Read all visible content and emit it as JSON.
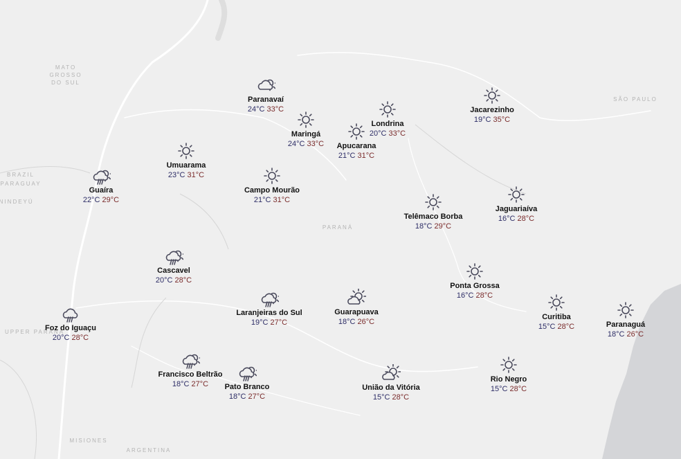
{
  "map": {
    "region_labels": [
      {
        "id": "mato-grosso-do-sul",
        "text": "MATO\nGROSSO\nDO SUL"
      },
      {
        "id": "sao-paulo",
        "text": "SÃO PAULO"
      },
      {
        "id": "parana",
        "text": "PARANÁ"
      },
      {
        "id": "brazil",
        "text": "BRAZIL"
      },
      {
        "id": "paraguay",
        "text": "PARAGUAY"
      },
      {
        "id": "canindeyu",
        "text": "ANINDEYÚ"
      },
      {
        "id": "upper-parana",
        "text": "UPPER PARANÁ"
      },
      {
        "id": "misiones",
        "text": "MISIONES"
      },
      {
        "id": "argentina",
        "text": "ARGENTINA"
      }
    ],
    "colors": {
      "background": "#efefef",
      "min_temp": "#2d2d66",
      "max_temp": "#7a2b2b",
      "icon": "#4a4a5c",
      "water": "#d4d5d8"
    },
    "cities": [
      {
        "name": "Paranavaí",
        "min": "24°C",
        "max": "33°C",
        "icon": "partly-cloudy"
      },
      {
        "name": "Maringá",
        "min": "24°C",
        "max": "33°C",
        "icon": "sunny"
      },
      {
        "name": "Londrina",
        "min": "20°C",
        "max": "33°C",
        "icon": "sunny"
      },
      {
        "name": "Apucarana",
        "min": "21°C",
        "max": "31°C",
        "icon": "sunny"
      },
      {
        "name": "Jacarezinho",
        "min": "19°C",
        "max": "35°C",
        "icon": "sunny"
      },
      {
        "name": "Umuarama",
        "min": "23°C",
        "max": "31°C",
        "icon": "sunny"
      },
      {
        "name": "Guaíra",
        "min": "22°C",
        "max": "29°C",
        "icon": "sun-rain"
      },
      {
        "name": "Campo Mourão",
        "min": "21°C",
        "max": "31°C",
        "icon": "sunny"
      },
      {
        "name": "Telêmaco Borba",
        "min": "18°C",
        "max": "29°C",
        "icon": "sunny"
      },
      {
        "name": "Jaguariaíva",
        "min": "16°C",
        "max": "28°C",
        "icon": "sunny"
      },
      {
        "name": "Cascavel",
        "min": "20°C",
        "max": "28°C",
        "icon": "sun-rain"
      },
      {
        "name": "Ponta Grossa",
        "min": "16°C",
        "max": "28°C",
        "icon": "sunny"
      },
      {
        "name": "Curitiba",
        "min": "15°C",
        "max": "28°C",
        "icon": "sunny"
      },
      {
        "name": "Paranaguá",
        "min": "18°C",
        "max": "26°C",
        "icon": "sunny"
      },
      {
        "name": "Guarapuava",
        "min": "18°C",
        "max": "26°C",
        "icon": "cloud-sun"
      },
      {
        "name": "Laranjeiras do Sul",
        "min": "19°C",
        "max": "27°C",
        "icon": "sun-rain"
      },
      {
        "name": "Foz do Iguaçu",
        "min": "20°C",
        "max": "28°C",
        "icon": "rain"
      },
      {
        "name": "Francisco Beltrão",
        "min": "18°C",
        "max": "27°C",
        "icon": "sun-rain"
      },
      {
        "name": "Pato Branco",
        "min": "18°C",
        "max": "27°C",
        "icon": "sun-rain"
      },
      {
        "name": "União da Vitória",
        "min": "15°C",
        "max": "28°C",
        "icon": "cloud-sun"
      },
      {
        "name": "Rio Negro",
        "min": "15°C",
        "max": "28°C",
        "icon": "sunny"
      }
    ]
  }
}
